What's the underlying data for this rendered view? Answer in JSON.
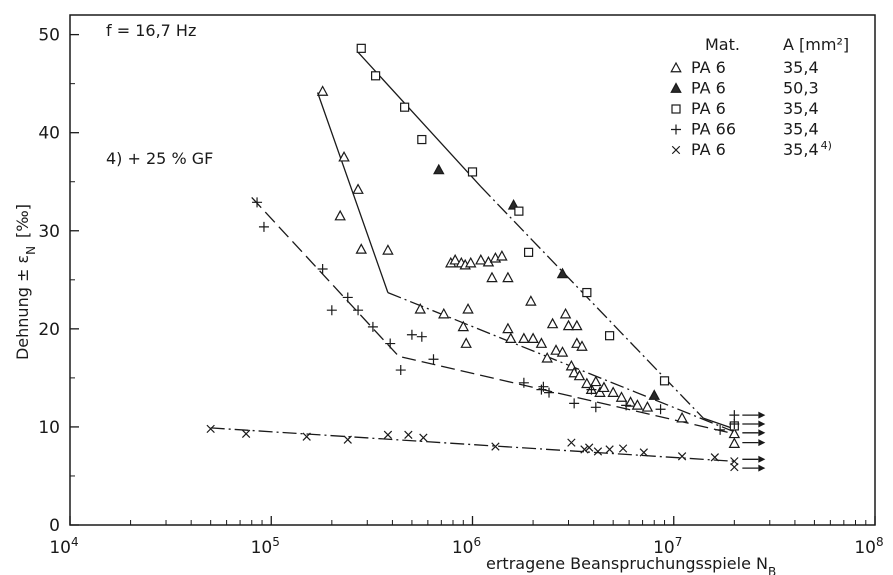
{
  "chart_data": {
    "type": "scatter",
    "xscale": "log",
    "xlim": [
      10000,
      100000000
    ],
    "ylim": [
      0,
      52
    ],
    "grid": false,
    "legend_position": "top-right",
    "xlabel": "ertragene Beanspruchungsspiele N",
    "xlabel_sub": "B",
    "ylabel": "Dehnung ± ε",
    "ylabel_sub": "N",
    "ylabel_unit": "[‰]",
    "x_ticks": [
      {
        "base": "10",
        "exp": "4",
        "value": 10000
      },
      {
        "base": "10",
        "exp": "5",
        "value": 100000
      },
      {
        "base": "10",
        "exp": "6",
        "value": 1000000
      },
      {
        "base": "10",
        "exp": "7",
        "value": 10000000
      },
      {
        "base": "10",
        "exp": "8",
        "value": 100000000
      }
    ],
    "y_ticks": [
      {
        "label": "0",
        "value": 0
      },
      {
        "label": "10",
        "value": 10
      },
      {
        "label": "20",
        "value": 20
      },
      {
        "label": "30",
        "value": 30
      },
      {
        "label": "40",
        "value": 40
      },
      {
        "label": "50",
        "value": 50
      }
    ],
    "annotations": {
      "frequency": "f = 16,7 Hz",
      "footnote": "4) + 25 % GF"
    },
    "legend": {
      "header_material": "Mat.",
      "header_area": "A [mm²]",
      "entries": [
        {
          "marker": "triangle-open",
          "material": "PA 6",
          "area": "35,4"
        },
        {
          "marker": "triangle-filled",
          "material": "PA 6",
          "area": "50,3"
        },
        {
          "marker": "square-open",
          "material": "PA 6",
          "area": "35,4"
        },
        {
          "marker": "plus",
          "material": "PA 66",
          "area": "35,4"
        },
        {
          "marker": "cross",
          "material": "PA 6",
          "area": "35,4 4)"
        }
      ]
    },
    "series": [
      {
        "marker": "triangle-open",
        "points": [
          [
            180000,
            44.2
          ],
          [
            230000,
            37.5
          ],
          [
            270000,
            34.2
          ],
          [
            220000,
            31.5
          ],
          [
            280000,
            28.1
          ],
          [
            380000,
            28
          ],
          [
            550000,
            22
          ],
          [
            720000,
            21.5
          ],
          [
            780000,
            26.7
          ],
          [
            820000,
            27
          ],
          [
            880000,
            26.7
          ],
          [
            920000,
            26.5
          ],
          [
            980000,
            26.7
          ],
          [
            1100000,
            27
          ],
          [
            1200000,
            26.8
          ],
          [
            1300000,
            27.2
          ],
          [
            1400000,
            27.4
          ],
          [
            1250000,
            25.2
          ],
          [
            1500000,
            25.2
          ],
          [
            900000,
            20.2
          ],
          [
            950000,
            22
          ],
          [
            930000,
            18.5
          ],
          [
            1500000,
            20
          ],
          [
            1550000,
            19
          ],
          [
            1800000,
            19
          ],
          [
            1950000,
            22.8
          ],
          [
            2000000,
            19
          ],
          [
            2200000,
            18.5
          ],
          [
            2350000,
            17
          ],
          [
            2500000,
            20.5
          ],
          [
            2600000,
            17.8
          ],
          [
            2800000,
            17.6
          ],
          [
            2900000,
            21.5
          ],
          [
            3000000,
            20.3
          ],
          [
            3100000,
            16.2
          ],
          [
            3200000,
            15.5
          ],
          [
            3300000,
            20.3
          ],
          [
            3400000,
            15.2
          ],
          [
            3300000,
            18.5
          ],
          [
            3500000,
            18.2
          ],
          [
            3700000,
            14.4
          ],
          [
            3900000,
            13.8
          ],
          [
            4100000,
            14.6
          ],
          [
            4300000,
            13.5
          ],
          [
            4500000,
            14
          ],
          [
            5000000,
            13.5
          ],
          [
            5500000,
            13
          ],
          [
            6100000,
            12.5
          ],
          [
            6600000,
            12.2
          ],
          [
            7400000,
            12
          ],
          [
            11000000,
            10.9
          ],
          [
            20000000,
            8.3
          ],
          [
            20000000,
            9.3
          ]
        ]
      },
      {
        "marker": "triangle-filled",
        "points": [
          [
            680000,
            36.2
          ],
          [
            1600000,
            32.6
          ],
          [
            2800000,
            25.6
          ],
          [
            8000000,
            13.2
          ]
        ]
      },
      {
        "marker": "square-open",
        "points": [
          [
            280000,
            48.6
          ],
          [
            330000,
            45.8
          ],
          [
            460000,
            42.6
          ],
          [
            560000,
            39.3
          ],
          [
            1000000,
            36
          ],
          [
            1700000,
            32
          ],
          [
            1900000,
            27.8
          ],
          [
            3700000,
            23.7
          ],
          [
            4800000,
            19.3
          ],
          [
            9000000,
            14.7
          ],
          [
            20000000,
            10.1
          ]
        ]
      },
      {
        "marker": "plus",
        "points": [
          [
            85000,
            32.9
          ],
          [
            92000,
            30.4
          ],
          [
            180000,
            26.1
          ],
          [
            200000,
            21.9
          ],
          [
            240000,
            23.2
          ],
          [
            270000,
            21.9
          ],
          [
            320000,
            20.2
          ],
          [
            390000,
            18.5
          ],
          [
            440000,
            15.8
          ],
          [
            500000,
            19.4
          ],
          [
            560000,
            19.2
          ],
          [
            640000,
            16.9
          ],
          [
            1800000,
            14.5
          ],
          [
            2200000,
            13.8
          ],
          [
            2250000,
            14.1
          ],
          [
            2400000,
            13.5
          ],
          [
            3200000,
            12.4
          ],
          [
            3900000,
            13.8
          ],
          [
            4100000,
            12
          ],
          [
            5800000,
            12.2
          ],
          [
            8600000,
            11.8
          ],
          [
            17000000,
            9.7
          ],
          [
            20000000,
            10.3
          ],
          [
            20000000,
            11.2
          ]
        ]
      },
      {
        "marker": "cross",
        "points": [
          [
            50000,
            9.8
          ],
          [
            75000,
            9.3
          ],
          [
            150000,
            9
          ],
          [
            240000,
            8.7
          ],
          [
            380000,
            9.2
          ],
          [
            480000,
            9.2
          ],
          [
            570000,
            8.9
          ],
          [
            1300000,
            8
          ],
          [
            3100000,
            8.4
          ],
          [
            3600000,
            7.7
          ],
          [
            3800000,
            7.9
          ],
          [
            4200000,
            7.5
          ],
          [
            4800000,
            7.7
          ],
          [
            5600000,
            7.8
          ],
          [
            7100000,
            7.4
          ],
          [
            11000000,
            7
          ],
          [
            16000000,
            6.9
          ],
          [
            20000000,
            6.5
          ],
          [
            20000000,
            5.9
          ]
        ]
      }
    ],
    "trend_lines": [
      {
        "style": "solid",
        "points": [
          [
            270000,
            48.2
          ],
          [
            1100000,
            34.5
          ]
        ]
      },
      {
        "style": "dashdot",
        "points": [
          [
            1100000,
            34.5
          ],
          [
            14000000,
            10.9
          ]
        ]
      },
      {
        "style": "solid",
        "points": [
          [
            14000000,
            10.9
          ],
          [
            20000000,
            9.8
          ]
        ]
      },
      {
        "style": "solid",
        "points": [
          [
            170000,
            44.1
          ],
          [
            380000,
            23.7
          ]
        ]
      },
      {
        "style": "dashdot",
        "points": [
          [
            380000,
            23.7
          ],
          [
            20000000,
            9.5
          ]
        ]
      },
      {
        "style": "dashed",
        "points": [
          [
            80000,
            33.4
          ],
          [
            430000,
            17.2
          ],
          [
            20000000,
            9.3
          ]
        ]
      },
      {
        "style": "dashdot",
        "points": [
          [
            50000,
            9.9
          ],
          [
            20000000,
            6.5
          ]
        ]
      }
    ],
    "runouts": [
      {
        "x": 20000000,
        "y": 11.2
      },
      {
        "x": 20000000,
        "y": 10.3
      },
      {
        "x": 20000000,
        "y": 9.4
      },
      {
        "x": 20000000,
        "y": 8.4
      },
      {
        "x": 20000000,
        "y": 6.7
      },
      {
        "x": 20000000,
        "y": 5.8
      }
    ]
  }
}
